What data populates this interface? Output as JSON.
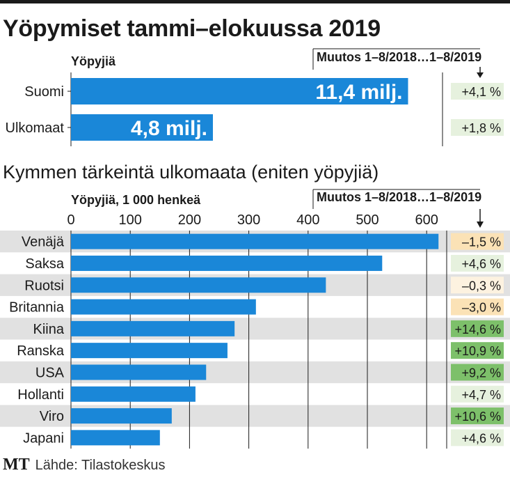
{
  "title": "Yöpymiset tammi–elokuussa 2019",
  "subtitle": "Kymmen tärkeintä ulkomaata (eniten yöpyjiä)",
  "source": {
    "logo": "MT",
    "text": "Lähde: Tilastokeskus"
  },
  "colors": {
    "bar": "#1a87d8",
    "stripe": "#e1e1e1",
    "green_light": "#e6f1de",
    "green_dark": "#7dc06a",
    "orange_light": "#fbe2b6",
    "orange_very_light": "#fdf2e0"
  },
  "chart_data": [
    {
      "type": "bar",
      "orientation": "horizontal",
      "unit_label": "Yöpyjiä",
      "change_header": "Muutos 1–8/2018…1–8/2019",
      "categories": [
        "Suomi",
        "Ulkomaat"
      ],
      "values": [
        11.4,
        4.8
      ],
      "value_labels": [
        "11,4 milj.",
        "4,8 milj."
      ],
      "changes": [
        "+4,1 %",
        "+1,8 %"
      ],
      "change_levels": [
        "light-green",
        "light-green"
      ],
      "xlim": [
        0,
        12.0
      ]
    },
    {
      "type": "bar",
      "orientation": "horizontal",
      "unit_label": "Yöpyjiä, 1 000 henkeä",
      "change_header": "Muutos 1–8/2018…1–8/2019",
      "categories": [
        "Venäjä",
        "Saksa",
        "Ruotsi",
        "Britannia",
        "Kiina",
        "Ranska",
        "USA",
        "Hollanti",
        "Viro",
        "Japani"
      ],
      "values": [
        620,
        525,
        430,
        312,
        276,
        264,
        228,
        210,
        170,
        150
      ],
      "changes": [
        "–1,5 %",
        "+4,6 %",
        "–0,3 %",
        "–3,0 %",
        "+14,6 %",
        "+10,9 %",
        "+9,2 %",
        "+4,7 %",
        "+10,6 %",
        "+4,6 %"
      ],
      "change_levels": [
        "orange-light",
        "light-green",
        "orange-very-light",
        "orange-light",
        "dark-green",
        "dark-green",
        "dark-green",
        "light-green",
        "dark-green",
        "light-green"
      ],
      "xticks": [
        0,
        100,
        200,
        300,
        400,
        500,
        600
      ],
      "xtick_labels": [
        "0",
        "100",
        "200",
        "300",
        "400",
        "500",
        "600"
      ],
      "xlim": [
        0,
        620
      ]
    }
  ]
}
